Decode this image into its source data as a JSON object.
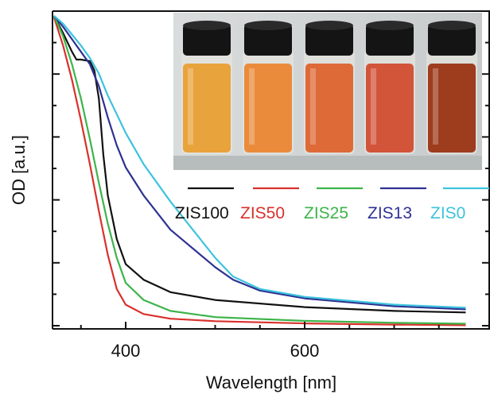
{
  "chart_data": {
    "type": "line",
    "title": "",
    "xlabel": "Wavelength [nm]",
    "ylabel": "OD [a.u.]",
    "xlim": [
      320,
      780
    ],
    "ylim": [
      0,
      1
    ],
    "x_ticks": [
      400,
      600
    ],
    "y_tick_labels_shown": false,
    "grid": false,
    "legend_position": "top-right",
    "inset": "photo-of-five-vials",
    "vial_colors": [
      "#e9a33c",
      "#ea8b3c",
      "#de6a38",
      "#d2553a",
      "#9e3c1e"
    ],
    "series": [
      {
        "name": "ZIS100",
        "color": "#111111",
        "x": [
          320,
          330,
          340,
          345,
          350,
          360,
          365,
          370,
          375,
          380,
          390,
          400,
          420,
          450,
          500,
          600,
          700,
          780
        ],
        "y": [
          0.995,
          0.94,
          0.88,
          0.855,
          0.855,
          0.85,
          0.82,
          0.73,
          0.55,
          0.42,
          0.28,
          0.2,
          0.15,
          0.11,
          0.085,
          0.062,
          0.05,
          0.045
        ]
      },
      {
        "name": "ZIS50",
        "color": "#d8312c",
        "x": [
          320,
          330,
          340,
          350,
          360,
          370,
          380,
          390,
          400,
          420,
          450,
          500,
          600,
          700,
          780
        ],
        "y": [
          0.99,
          0.9,
          0.79,
          0.66,
          0.52,
          0.37,
          0.23,
          0.12,
          0.07,
          0.04,
          0.025,
          0.017,
          0.01,
          0.006,
          0.004
        ]
      },
      {
        "name": "ZIS25",
        "color": "#3cb44a",
        "x": [
          320,
          330,
          340,
          350,
          360,
          370,
          380,
          390,
          400,
          420,
          450,
          500,
          600,
          700,
          780
        ],
        "y": [
          0.995,
          0.93,
          0.84,
          0.73,
          0.6,
          0.46,
          0.33,
          0.22,
          0.14,
          0.085,
          0.05,
          0.03,
          0.018,
          0.012,
          0.009
        ]
      },
      {
        "name": "ZIS13",
        "color": "#2e3192",
        "x": [
          320,
          330,
          340,
          350,
          360,
          370,
          380,
          390,
          400,
          420,
          450,
          500,
          520,
          550,
          600,
          700,
          780
        ],
        "y": [
          0.995,
          0.96,
          0.92,
          0.88,
          0.84,
          0.77,
          0.67,
          0.58,
          0.51,
          0.42,
          0.31,
          0.19,
          0.15,
          0.115,
          0.09,
          0.065,
          0.055
        ]
      },
      {
        "name": "ZIS0",
        "color": "#3cc3dd",
        "x": [
          320,
          330,
          340,
          350,
          360,
          370,
          380,
          390,
          400,
          420,
          450,
          500,
          520,
          550,
          600,
          700,
          780
        ],
        "y": [
          0.995,
          0.97,
          0.935,
          0.9,
          0.86,
          0.81,
          0.74,
          0.68,
          0.62,
          0.52,
          0.4,
          0.22,
          0.16,
          0.12,
          0.095,
          0.07,
          0.06
        ]
      }
    ]
  }
}
